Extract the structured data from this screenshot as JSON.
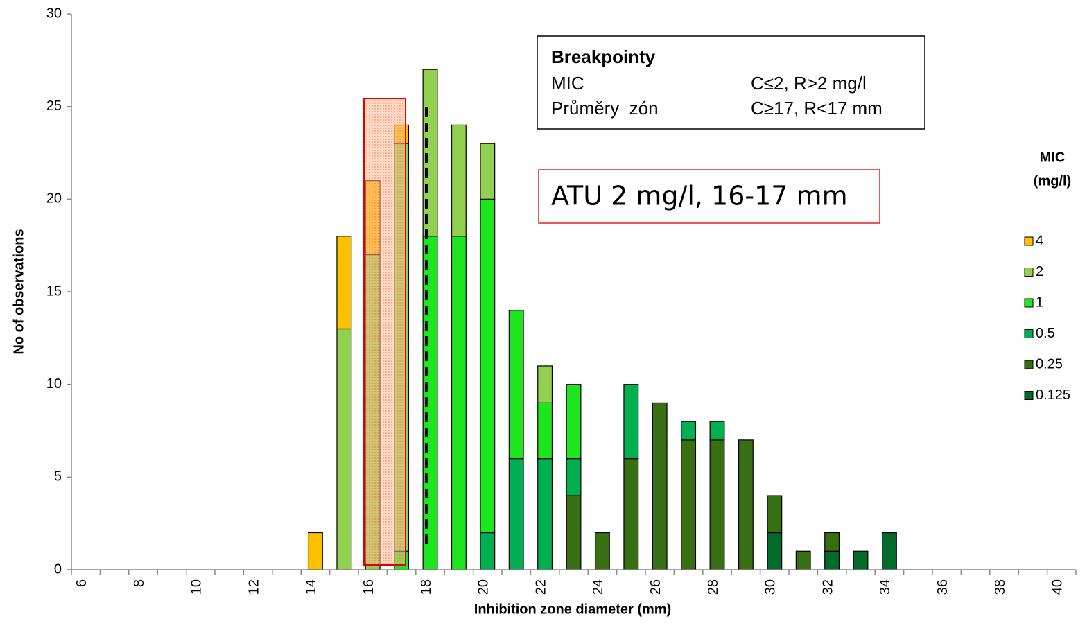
{
  "chart_data": {
    "type": "bar",
    "stacked": true,
    "xlabel": "Inhibition zone diameter (mm)",
    "ylabel": "No of observations",
    "legend_title": [
      "MIC",
      "(mg/l)"
    ],
    "legend_position": "right",
    "categories": [
      "6",
      null,
      "8",
      null,
      "10",
      null,
      "12",
      null,
      "14",
      null,
      "16",
      null,
      "18",
      null,
      "20",
      null,
      "22",
      null,
      "24",
      null,
      "26",
      null,
      "28",
      null,
      "30",
      null,
      "32",
      null,
      "34",
      null,
      "36",
      null,
      "38",
      null,
      "40"
    ],
    "series": [
      {
        "name": "0.125",
        "color": "#006b2a",
        "values": [
          null,
          null,
          null,
          null,
          null,
          null,
          null,
          null,
          null,
          null,
          null,
          null,
          null,
          null,
          null,
          null,
          null,
          null,
          null,
          null,
          null,
          null,
          null,
          null,
          2,
          null,
          1,
          1,
          2,
          null,
          null,
          null,
          null,
          null,
          null
        ]
      },
      {
        "name": "0.25",
        "color": "#386f12",
        "values": [
          null,
          null,
          null,
          null,
          null,
          null,
          null,
          null,
          null,
          null,
          null,
          null,
          null,
          null,
          null,
          null,
          null,
          4,
          2,
          6,
          9,
          7,
          7,
          7,
          2,
          1,
          1,
          null,
          null,
          null,
          null,
          null,
          null,
          null,
          null
        ]
      },
      {
        "name": "0.5",
        "color": "#00b050",
        "values": [
          null,
          null,
          null,
          null,
          null,
          null,
          null,
          null,
          null,
          null,
          null,
          null,
          null,
          null,
          2,
          6,
          6,
          2,
          null,
          4,
          null,
          1,
          1,
          null,
          null,
          null,
          null,
          null,
          null,
          null,
          null,
          null,
          null,
          null,
          null
        ]
      },
      {
        "name": "1",
        "color": "#1ee61e",
        "values": [
          null,
          null,
          null,
          null,
          null,
          null,
          null,
          null,
          null,
          null,
          null,
          1,
          18,
          18,
          18,
          8,
          3,
          4,
          null,
          null,
          null,
          null,
          null,
          null,
          null,
          null,
          null,
          null,
          null,
          null,
          null,
          null,
          null,
          null,
          null
        ]
      },
      {
        "name": "2",
        "color": "#92d050",
        "values": [
          null,
          null,
          null,
          null,
          null,
          null,
          null,
          null,
          null,
          13,
          17,
          22,
          9,
          6,
          3,
          null,
          2,
          null,
          null,
          null,
          null,
          null,
          null,
          null,
          null,
          null,
          null,
          null,
          null,
          null,
          null,
          null,
          null,
          null,
          null
        ]
      },
      {
        "name": "4",
        "color": "#ffc000",
        "values": [
          null,
          null,
          null,
          null,
          null,
          null,
          null,
          null,
          2,
          5,
          4,
          1,
          null,
          null,
          null,
          null,
          null,
          null,
          null,
          null,
          null,
          null,
          null,
          null,
          null,
          null,
          null,
          null,
          null,
          null,
          null,
          null,
          null,
          null,
          null
        ]
      }
    ],
    "ylim": [
      0,
      30
    ],
    "yticks": [
      0,
      5,
      10,
      15,
      20,
      25,
      30
    ],
    "annotations": {
      "breakpoints": {
        "title": "Breakpointy",
        "rows": [
          [
            "MIC",
            "C≤2, R>2 mg/l"
          ],
          [
            "Průměry  zón",
            "C≥17, R<17 mm"
          ]
        ]
      },
      "highlight": "ATU 2 mg/l, 16-17 mm"
    }
  }
}
